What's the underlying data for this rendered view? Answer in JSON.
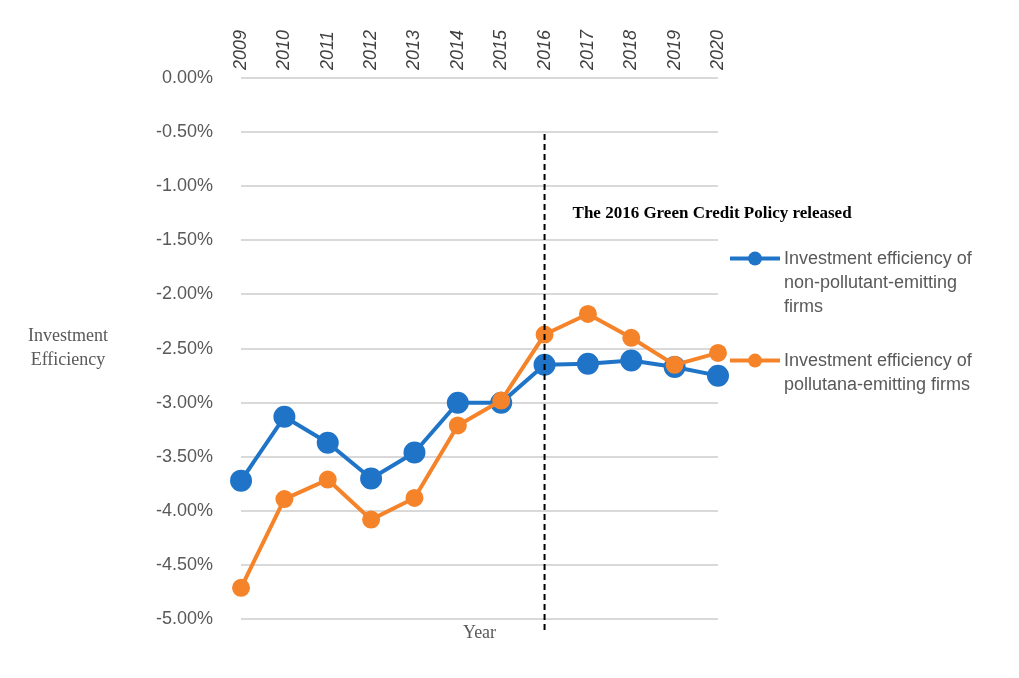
{
  "chart_data": {
    "type": "line",
    "xlabel": "Year",
    "ylabel": "Investment Efficiency",
    "categories": [
      "2009",
      "2010",
      "2011",
      "2012",
      "2013",
      "2014",
      "2015",
      "2016",
      "2017",
      "2018",
      "2019",
      "2020"
    ],
    "series": [
      {
        "name": "Investment efficiency of non-pollutant-emitting firms",
        "color": "#1f74c8",
        "values": [
          -3.72,
          -3.13,
          -3.37,
          -3.7,
          -3.46,
          -3.0,
          -3.0,
          -2.65,
          -2.64,
          -2.61,
          -2.67,
          -2.75
        ]
      },
      {
        "name": "Investment efficiency of pollutana-emitting firms",
        "color": "#f5832a",
        "values": [
          -4.71,
          -3.89,
          -3.71,
          -4.08,
          -3.88,
          -3.21,
          -2.98,
          -2.37,
          -2.18,
          -2.4,
          -2.65,
          -2.54
        ]
      }
    ],
    "ylim": [
      -5,
      0
    ],
    "yticks": [
      {
        "value": 0,
        "label": "0.00%"
      },
      {
        "value": -0.5,
        "label": "-0.50%"
      },
      {
        "value": -1,
        "label": "-1.00%"
      },
      {
        "value": -1.5,
        "label": "-1.50%"
      },
      {
        "value": -2,
        "label": "-2.00%"
      },
      {
        "value": -2.5,
        "label": "-2.50%"
      },
      {
        "value": -3,
        "label": "-3.00%"
      },
      {
        "value": -3.5,
        "label": "-3.50%"
      },
      {
        "value": -4,
        "label": "-4.00%"
      },
      {
        "value": -4.5,
        "label": "-4.50%"
      },
      {
        "value": -5,
        "label": "-5.00%"
      }
    ],
    "ref_lines": [
      {
        "axis": "x",
        "value": "2016",
        "label": "The 2016 Green Credit Policy released",
        "color": "#000000",
        "line_style": "dashed"
      }
    ],
    "grid": "y",
    "legend": "right",
    "marker": "circle",
    "line_style": "solid"
  }
}
